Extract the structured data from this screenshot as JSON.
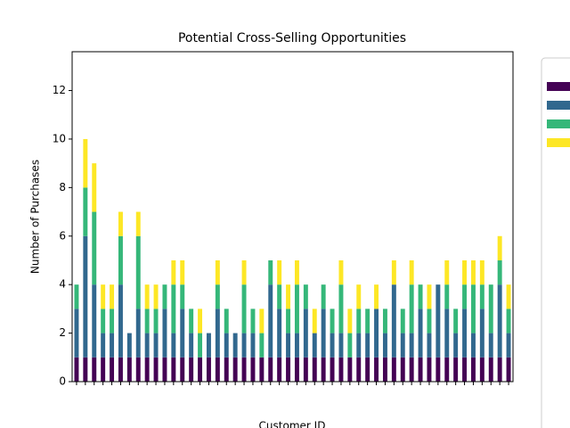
{
  "chart_data": {
    "type": "stacked_bar",
    "title": "Potential Cross-Selling Opportunities",
    "y_label": "Number of Purchases",
    "x_label": "Customer ID",
    "categories": [
      null,
      null,
      null,
      null,
      null,
      null,
      null,
      null,
      null,
      null,
      null,
      null,
      null,
      null,
      null,
      null,
      null,
      null,
      null,
      null,
      null,
      null,
      null,
      null,
      null,
      null,
      null,
      null,
      null,
      null,
      null,
      null,
      null,
      null,
      null,
      null,
      null,
      null,
      null,
      null,
      null,
      null,
      null,
      null,
      null,
      null,
      null,
      null,
      null,
      null
    ],
    "series": [
      {
        "color": "#440154",
        "values": [
          1,
          1,
          1,
          1,
          1,
          1,
          1,
          1,
          1,
          1,
          1,
          1,
          1,
          1,
          1,
          1,
          1,
          1,
          1,
          1,
          1,
          1,
          1,
          1,
          1,
          1,
          1,
          1,
          1,
          1,
          1,
          1,
          1,
          1,
          1,
          1,
          1,
          1,
          1,
          1,
          1,
          1,
          1,
          1,
          1,
          1,
          1,
          1,
          1,
          1
        ]
      },
      {
        "color": "#31688e",
        "values": [
          2,
          5,
          3,
          1,
          1,
          3,
          1,
          2,
          1,
          1,
          2,
          1,
          2,
          1,
          0,
          1,
          2,
          1,
          1,
          1,
          1,
          0,
          3,
          2,
          1,
          1,
          2,
          1,
          2,
          1,
          1,
          0,
          1,
          1,
          2,
          1,
          3,
          1,
          1,
          2,
          1,
          3,
          2,
          1,
          2,
          1,
          2,
          1,
          3,
          1
        ]
      },
      {
        "color": "#35b779",
        "values": [
          1,
          2,
          3,
          1,
          1,
          2,
          0,
          3,
          1,
          1,
          1,
          2,
          1,
          1,
          1,
          0,
          1,
          1,
          0,
          2,
          1,
          1,
          1,
          1,
          1,
          2,
          1,
          0,
          1,
          1,
          2,
          1,
          1,
          1,
          0,
          1,
          0,
          1,
          2,
          1,
          1,
          0,
          1,
          1,
          1,
          2,
          1,
          2,
          1,
          1
        ]
      },
      {
        "color": "#fde725",
        "values": [
          0,
          2,
          2,
          1,
          1,
          1,
          0,
          1,
          1,
          1,
          0,
          1,
          1,
          0,
          1,
          0,
          1,
          0,
          0,
          1,
          0,
          1,
          0,
          1,
          1,
          1,
          0,
          1,
          0,
          0,
          1,
          1,
          1,
          0,
          1,
          0,
          1,
          0,
          1,
          0,
          1,
          0,
          1,
          0,
          1,
          1,
          1,
          0,
          1,
          1
        ]
      }
    ],
    "ylim": [
      0,
      13.6
    ],
    "yticks": [
      0,
      2,
      4,
      6,
      8,
      10,
      12
    ]
  }
}
